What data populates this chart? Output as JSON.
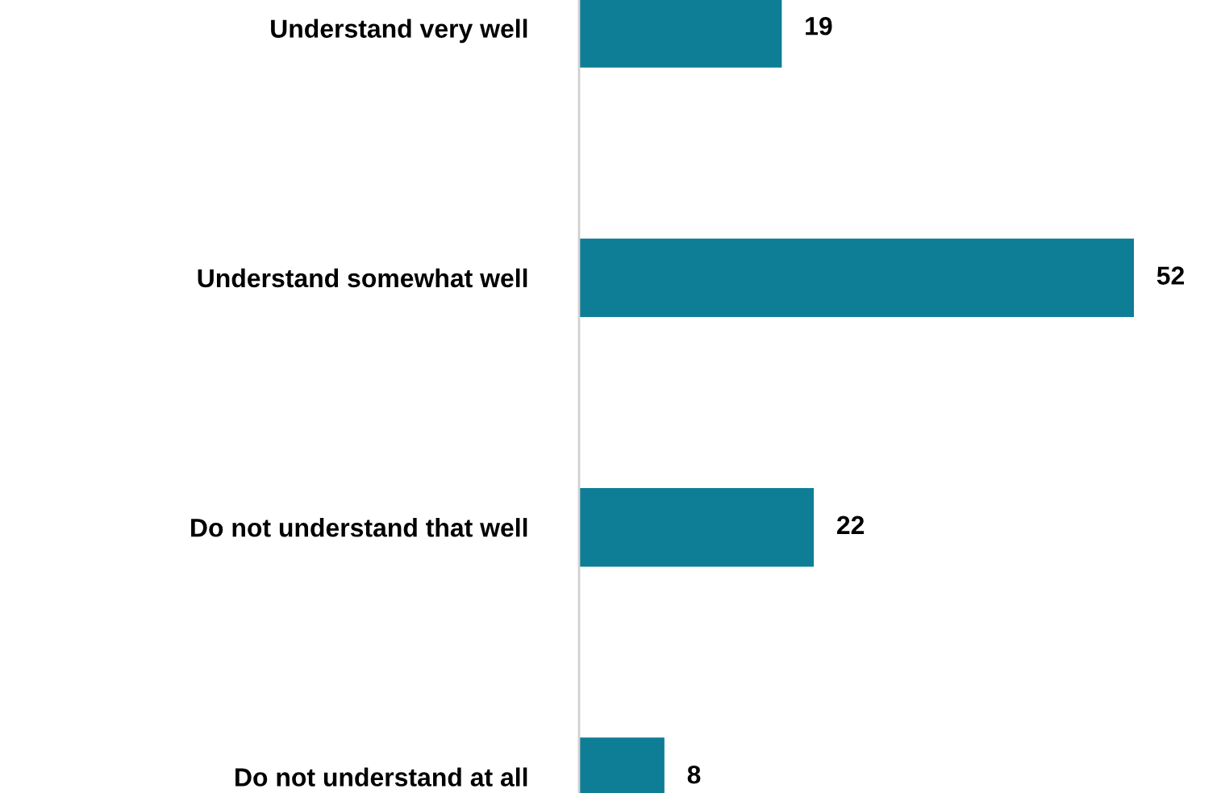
{
  "chart_data": {
    "type": "bar",
    "orientation": "horizontal",
    "categories": [
      "Understand very well",
      "Understand somewhat well",
      "Do not understand that well",
      "Do not understand at all"
    ],
    "values": [
      19,
      52,
      22,
      8
    ],
    "color": "#0e7d96",
    "data_labels": true,
    "tick_labels": "y"
  }
}
